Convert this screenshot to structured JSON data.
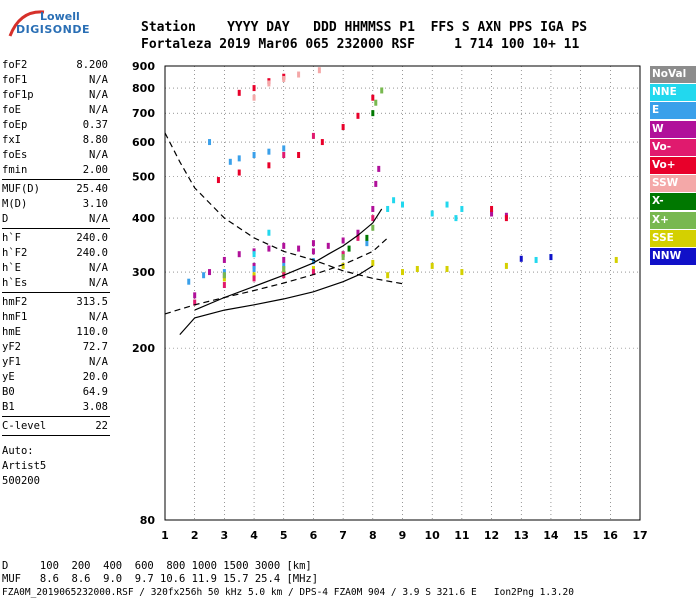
{
  "logo": {
    "top": "Lowell",
    "bottom": "DIGISONDE"
  },
  "header": {
    "line1": "Station    YYYY DAY   DDD HHMMSS P1  FFS S AXN PPS IGA PS",
    "line2": "Fortaleza 2019 Mar06 065 232000 RSF     1 714 100 10+ 11"
  },
  "params_group1": [
    {
      "label": "foF2",
      "value": "8.200"
    },
    {
      "label": "foF1",
      "value": "N/A"
    },
    {
      "label": "foF1p",
      "value": "N/A"
    },
    {
      "label": "foE",
      "value": "N/A"
    },
    {
      "label": "foEp",
      "value": "0.37"
    },
    {
      "label": "fxI",
      "value": "8.80"
    },
    {
      "label": "foEs",
      "value": "N/A"
    },
    {
      "label": "fmin",
      "value": "2.00"
    }
  ],
  "params_group2": [
    {
      "label": "MUF(D)",
      "value": "25.40"
    },
    {
      "label": "M(D)",
      "value": "3.10"
    },
    {
      "label": "D",
      "value": "N/A"
    }
  ],
  "params_group3": [
    {
      "label": "h`F",
      "value": "240.0"
    },
    {
      "label": "h`F2",
      "value": "240.0"
    },
    {
      "label": "h`E",
      "value": "N/A"
    },
    {
      "label": "h`Es",
      "value": "N/A"
    }
  ],
  "params_group4": [
    {
      "label": "hmF2",
      "value": "313.5"
    },
    {
      "label": "hmF1",
      "value": "N/A"
    },
    {
      "label": "hmE",
      "value": "110.0"
    },
    {
      "label": "yF2",
      "value": "72.7"
    },
    {
      "label": "yF1",
      "value": "N/A"
    },
    {
      "label": "yE",
      "value": "20.0"
    },
    {
      "label": "B0",
      "value": "64.9"
    },
    {
      "label": "B1",
      "value": "3.08"
    }
  ],
  "params_group5": [
    {
      "label": "C-level",
      "value": "22"
    }
  ],
  "auto_lines": [
    "Auto:",
    "Artist5",
    "500200"
  ],
  "legend": [
    {
      "label": "NoVal",
      "bg": "#8c8c8c",
      "fg": "#ffffff"
    },
    {
      "label": "NNE",
      "bg": "#22d8ee",
      "fg": "#ffffff"
    },
    {
      "label": "E",
      "bg": "#3aa0ea",
      "fg": "#ffffff"
    },
    {
      "label": "W",
      "bg": "#b0109a",
      "fg": "#ffffff"
    },
    {
      "label": "Vo-",
      "bg": "#e01a6e",
      "fg": "#ffffff"
    },
    {
      "label": "Vo+",
      "bg": "#e8002a",
      "fg": "#ffffff"
    },
    {
      "label": "SSW",
      "bg": "#f4a8a8",
      "fg": "#ffffff"
    },
    {
      "label": "X-",
      "bg": "#007800",
      "fg": "#ffffff"
    },
    {
      "label": "X+",
      "bg": "#78b850",
      "fg": "#ffffff"
    },
    {
      "label": "SSE",
      "bg": "#d4d000",
      "fg": "#ffffff"
    },
    {
      "label": "NNW",
      "bg": "#1010c8",
      "fg": "#ffffff"
    }
  ],
  "bottom": {
    "d_line": "D     100  200  400  600  800 1000 1500 3000 [km]",
    "muf_line": "MUF   8.6  8.6  9.0  9.7 10.6 11.9 15.7 25.4 [MHz]",
    "file_line": "FZA0M_2019065232000.RSF / 320fx256h 50 kHz 5.0 km / DPS-4 FZA0M 904 / 3.9 S 321.6 E   Ion2Png 1.3.20"
  },
  "chart_data": {
    "type": "scatter",
    "title": "",
    "xlabel": "",
    "ylabel": "",
    "x_ticks": [
      1,
      2,
      3,
      4,
      5,
      6,
      7,
      8,
      9,
      10,
      11,
      12,
      13,
      14,
      15,
      16,
      17
    ],
    "y_ticks": [
      80,
      200,
      300,
      400,
      500,
      600,
      700,
      800,
      900
    ],
    "xlim": [
      1,
      17
    ],
    "ylim": [
      80,
      900
    ],
    "y_scale": "log",
    "grid": true,
    "series": [
      {
        "color": "#b0109a",
        "points": [
          [
            2,
            265
          ],
          [
            2.5,
            300
          ],
          [
            3,
            320
          ],
          [
            3.5,
            330
          ],
          [
            4,
            335
          ],
          [
            4.5,
            340
          ],
          [
            5,
            345
          ],
          [
            5.5,
            340
          ],
          [
            6,
            335
          ],
          [
            6.5,
            345
          ],
          [
            7,
            355
          ],
          [
            7.5,
            370
          ],
          [
            8,
            420
          ],
          [
            8.1,
            480
          ],
          [
            8.2,
            520
          ],
          [
            6,
            350
          ],
          [
            5,
            320
          ],
          [
            4,
            310
          ],
          [
            3,
            295
          ],
          [
            12,
            410
          ],
          [
            12.5,
            405
          ]
        ]
      },
      {
        "color": "#3aa0ea",
        "points": [
          [
            1.8,
            285
          ],
          [
            2.3,
            295
          ],
          [
            3,
            300
          ],
          [
            4,
            305
          ],
          [
            5,
            310
          ],
          [
            6,
            318
          ],
          [
            7,
            330
          ],
          [
            7.8,
            350
          ],
          [
            3.2,
            540
          ],
          [
            3.5,
            550
          ],
          [
            4,
            560
          ],
          [
            4.5,
            570
          ],
          [
            5,
            580
          ],
          [
            2.5,
            600
          ]
        ]
      },
      {
        "color": "#22d8ee",
        "points": [
          [
            8.5,
            420
          ],
          [
            8.7,
            440
          ],
          [
            9,
            430
          ],
          [
            10,
            410
          ],
          [
            10.5,
            430
          ],
          [
            10.8,
            400
          ],
          [
            11,
            420
          ],
          [
            14,
            325
          ],
          [
            13.5,
            320
          ],
          [
            4,
            330
          ],
          [
            4.5,
            370
          ]
        ]
      },
      {
        "color": "#d4d000",
        "points": [
          [
            3,
            290
          ],
          [
            4,
            295
          ],
          [
            5,
            300
          ],
          [
            6,
            305
          ],
          [
            7,
            310
          ],
          [
            8,
            315
          ],
          [
            8.5,
            295
          ],
          [
            9,
            300
          ],
          [
            9.5,
            305
          ],
          [
            10,
            310
          ],
          [
            10.5,
            305
          ],
          [
            11,
            300
          ],
          [
            12.5,
            310
          ],
          [
            16.2,
            320
          ]
        ]
      },
      {
        "color": "#e8002a",
        "points": [
          [
            2.8,
            490
          ],
          [
            3.5,
            510
          ],
          [
            4.5,
            530
          ],
          [
            5.5,
            560
          ],
          [
            6.3,
            600
          ],
          [
            7,
            650
          ],
          [
            7.5,
            690
          ],
          [
            8,
            760
          ],
          [
            3.5,
            780
          ],
          [
            4,
            800
          ],
          [
            4.5,
            830
          ],
          [
            5,
            850
          ],
          [
            12,
            420
          ],
          [
            12.5,
            400
          ]
        ]
      },
      {
        "color": "#e01a6e",
        "points": [
          [
            2,
            255
          ],
          [
            3,
            280
          ],
          [
            4,
            290
          ],
          [
            5,
            295
          ],
          [
            6,
            300
          ],
          [
            7,
            330
          ],
          [
            7.5,
            360
          ],
          [
            8,
            400
          ],
          [
            5,
            560
          ],
          [
            6,
            620
          ]
        ]
      },
      {
        "color": "#78b850",
        "points": [
          [
            3,
            295
          ],
          [
            5,
            305
          ],
          [
            7,
            325
          ],
          [
            8,
            380
          ],
          [
            8.3,
            790
          ],
          [
            8.1,
            740
          ]
        ]
      },
      {
        "color": "#f4a8a8",
        "points": [
          [
            4.5,
            820
          ],
          [
            5,
            840
          ],
          [
            5.5,
            860
          ],
          [
            6.2,
            880
          ],
          [
            4,
            760
          ]
        ]
      },
      {
        "color": "#007800",
        "points": [
          [
            7.2,
            340
          ],
          [
            7.8,
            360
          ],
          [
            8,
            700
          ]
        ]
      },
      {
        "color": "#1010c8",
        "points": [
          [
            13,
            322
          ],
          [
            14,
            325
          ]
        ]
      }
    ],
    "fit_curves": [
      {
        "style": "solid",
        "points": [
          [
            1.5,
            215
          ],
          [
            2,
            235
          ],
          [
            3,
            245
          ],
          [
            4,
            252
          ],
          [
            5,
            260
          ],
          [
            6,
            270
          ],
          [
            7,
            285
          ],
          [
            7.5,
            295
          ],
          [
            8,
            310
          ]
        ]
      },
      {
        "style": "solid",
        "points": [
          [
            2,
            245
          ],
          [
            3,
            262
          ],
          [
            4,
            278
          ],
          [
            5,
            295
          ],
          [
            6,
            315
          ],
          [
            6.5,
            330
          ],
          [
            7,
            345
          ],
          [
            7.5,
            365
          ],
          [
            8,
            390
          ],
          [
            8.3,
            420
          ]
        ]
      },
      {
        "style": "dashed",
        "points": [
          [
            1,
            630
          ],
          [
            1.5,
            540
          ],
          [
            2,
            470
          ],
          [
            3,
            400
          ],
          [
            4,
            360
          ],
          [
            5,
            335
          ],
          [
            6,
            320
          ],
          [
            7,
            302
          ],
          [
            8,
            290
          ],
          [
            9,
            282
          ]
        ]
      },
      {
        "style": "dashed",
        "points": [
          [
            1,
            240
          ],
          [
            2,
            252
          ],
          [
            3,
            262
          ],
          [
            4,
            272
          ],
          [
            5,
            283
          ],
          [
            6,
            296
          ],
          [
            7,
            312
          ],
          [
            8,
            335
          ],
          [
            8.5,
            360
          ]
        ]
      }
    ]
  }
}
